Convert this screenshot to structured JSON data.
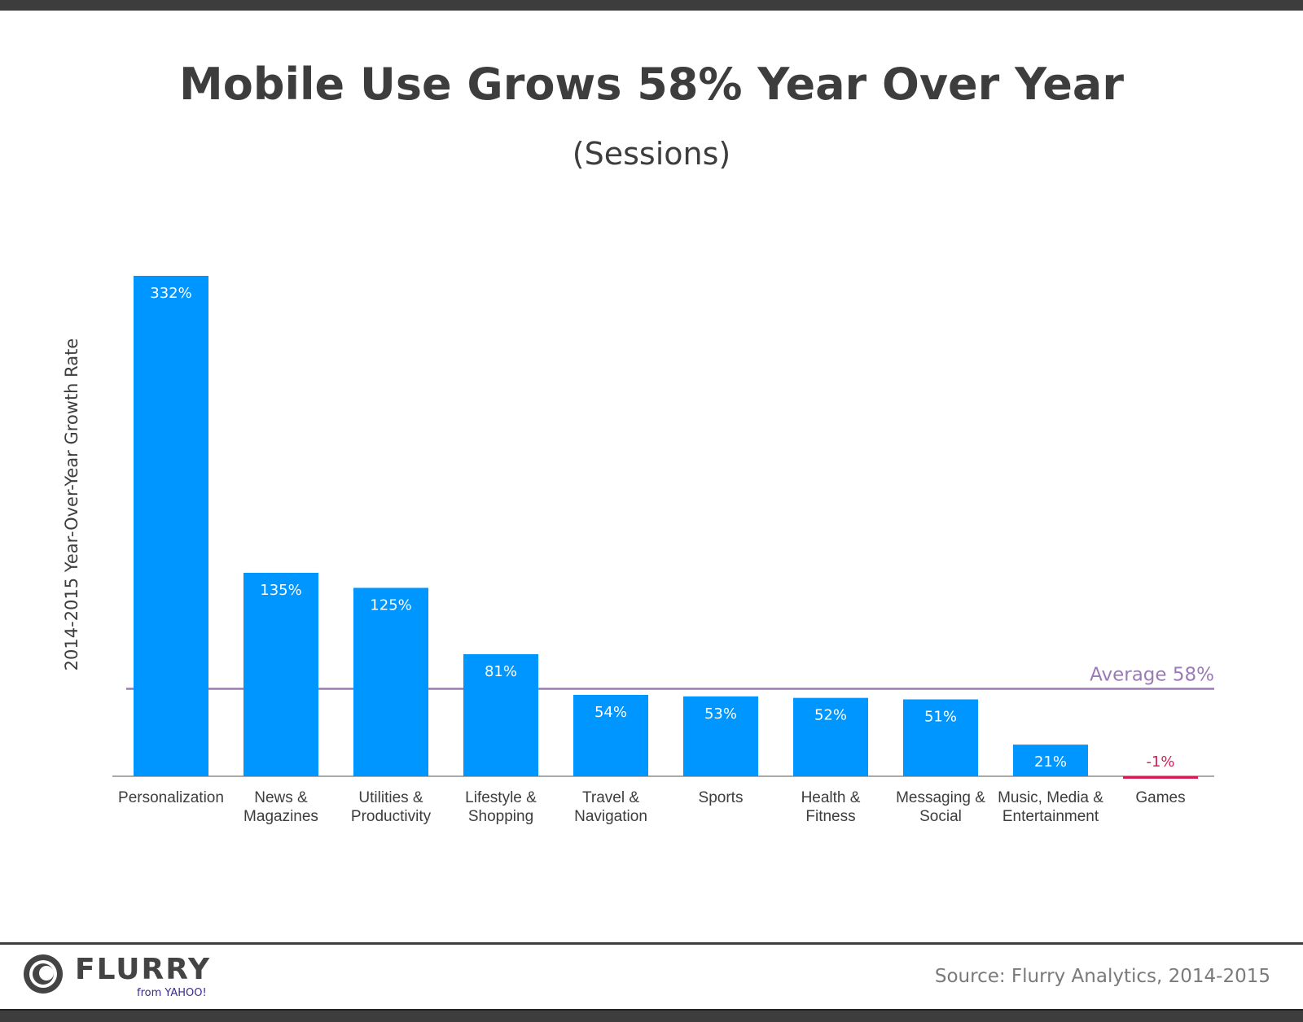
{
  "chart_data": {
    "type": "bar",
    "title": "Mobile Use Grows 58% Year Over Year",
    "subtitle": "(Sessions)",
    "ylabel": "2014-2015 Year-Over-Year Growth Rate",
    "xlabel": "",
    "categories": [
      [
        "Personalization"
      ],
      [
        "News &",
        "Magazines"
      ],
      [
        "Utilities &",
        "Productivity"
      ],
      [
        "Lifestyle &",
        "Shopping"
      ],
      [
        "Travel &",
        "Navigation"
      ],
      [
        "Sports"
      ],
      [
        "Health &",
        "Fitness"
      ],
      [
        "Messaging &",
        "Social"
      ],
      [
        "Music, Media &",
        "Entertainment"
      ],
      [
        "Games"
      ]
    ],
    "values": [
      332,
      135,
      125,
      81,
      54,
      53,
      52,
      51,
      21,
      -1
    ],
    "data_labels": [
      "332%",
      "135%",
      "125%",
      "81%",
      "54%",
      "53%",
      "52%",
      "51%",
      "21%",
      "-1%"
    ],
    "reference_line": {
      "label": "Average 58%",
      "value": 58,
      "color": "#9b7bb5"
    },
    "ylim": [
      -1,
      332
    ],
    "grid": false,
    "colors": {
      "positive": "#0096ff",
      "negative": "#d81b55",
      "axis": "#aaaaaa"
    }
  },
  "footer": {
    "source": "Source: Flurry Analytics, 2014-2015",
    "logo_text": "FLURRY",
    "logo_sub": "from YAHOO!"
  }
}
